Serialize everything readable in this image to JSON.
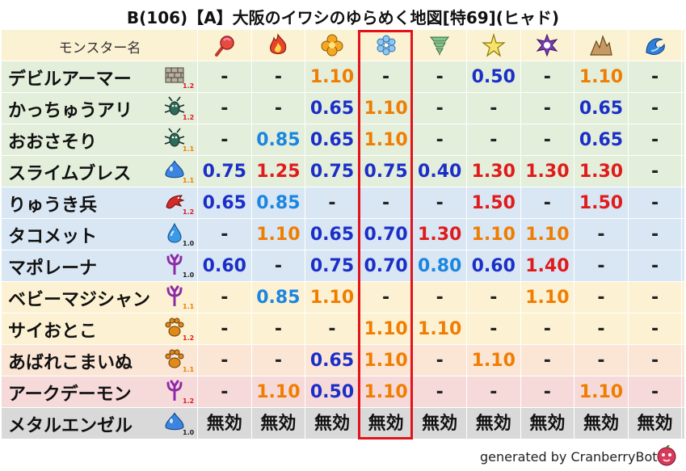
{
  "title": "B(106)【A】大阪のイワシのゆらめく地図[特69](ヒャド)",
  "header": {
    "name_label": "モンスター名",
    "element_icons": [
      "mera-fire-orb-icon",
      "gira-flame-icon",
      "io-explosion-icon",
      "hyado-ice-icon",
      "bagi-tornado-icon",
      "dein-lightning-icon",
      "doruma-dark-vortex-icon",
      "jibaria-rock-spikes-icon",
      "aqua-wave-icon"
    ]
  },
  "rows": [
    {
      "name": "デビルアーマー",
      "type_icon": "brick-wall-icon",
      "level": "1.2",
      "values": [
        "-",
        "-",
        "1.10",
        "-",
        "-",
        "0.50",
        "-",
        "1.10",
        "-"
      ]
    },
    {
      "name": "かっちゅうアリ",
      "type_icon": "insect-icon",
      "level": "1.2",
      "values": [
        "-",
        "-",
        "0.65",
        "1.10",
        "-",
        "-",
        "-",
        "0.65",
        "-"
      ]
    },
    {
      "name": "おおさそり",
      "type_icon": "insect-icon",
      "level": "1.1",
      "values": [
        "-",
        "0.85",
        "0.65",
        "1.10",
        "-",
        "-",
        "-",
        "0.65",
        "-"
      ]
    },
    {
      "name": "スライムブレス",
      "type_icon": "slime-icon",
      "level": "1.1",
      "values": [
        "0.75",
        "1.25",
        "0.75",
        "0.75",
        "0.40",
        "1.30",
        "1.30",
        "1.30",
        "-"
      ]
    },
    {
      "name": "りゅうき兵",
      "type_icon": "dragon-icon",
      "level": "1.2",
      "values": [
        "0.65",
        "0.85",
        "-",
        "-",
        "-",
        "1.50",
        "-",
        "1.50",
        "-"
      ]
    },
    {
      "name": "タコメット",
      "type_icon": "water-drop-icon",
      "level": "1.0",
      "values": [
        "-",
        "1.10",
        "0.65",
        "0.70",
        "1.30",
        "1.10",
        "1.10",
        "-",
        "-"
      ]
    },
    {
      "name": "マポレーナ",
      "type_icon": "demon-trident-icon",
      "level": "1.0",
      "values": [
        "0.60",
        "-",
        "0.75",
        "0.70",
        "0.80",
        "0.60",
        "1.40",
        "-",
        "-"
      ]
    },
    {
      "name": "ベビーマジシャン",
      "type_icon": "demon-trident-icon",
      "level": "1.1",
      "values": [
        "-",
        "0.85",
        "1.10",
        "-",
        "-",
        "-",
        "1.10",
        "-",
        "-"
      ]
    },
    {
      "name": "サイおとこ",
      "type_icon": "paw-icon",
      "level": "1.2",
      "values": [
        "-",
        "-",
        "-",
        "1.10",
        "1.10",
        "-",
        "-",
        "-",
        "-"
      ]
    },
    {
      "name": "あばれこまいぬ",
      "type_icon": "paw-icon",
      "level": "1.1",
      "values": [
        "-",
        "-",
        "0.65",
        "1.10",
        "-",
        "1.10",
        "-",
        "-",
        "-"
      ]
    },
    {
      "name": "アークデーモン",
      "type_icon": "demon-trident-icon",
      "level": "1.2",
      "values": [
        "-",
        "1.10",
        "0.50",
        "1.10",
        "-",
        "-",
        "-",
        "1.10",
        "-"
      ]
    },
    {
      "name": "メタルエンゼル",
      "type_icon": "slime-icon",
      "level": "1.0",
      "values": [
        "無効",
        "無効",
        "無効",
        "無効",
        "無効",
        "無効",
        "無効",
        "無効",
        "無効"
      ]
    }
  ],
  "footer": {
    "text": "generated by CranberryBot",
    "logo_icon": "cranberry-mascot-icon"
  },
  "colors": {
    "header_bg": "#fbf2d3",
    "row_green": "#e3eedb",
    "row_blue": "#d9e6f3",
    "row_yellow": "#fcf2d3",
    "row_peach": "#fbe6d6",
    "row_pink": "#f6d9d9",
    "row_gray": "#d9d9d9",
    "weak": "#f07d00",
    "strong": "#e01b1b",
    "resist": "#1b2fc8",
    "resist_light": "#1a86e0",
    "highlight": "#e3131b"
  },
  "row_tints": [
    "green",
    "green",
    "green",
    "green",
    "blue",
    "blue",
    "blue",
    "yellow",
    "yellow",
    "peach",
    "pink",
    "gray"
  ]
}
